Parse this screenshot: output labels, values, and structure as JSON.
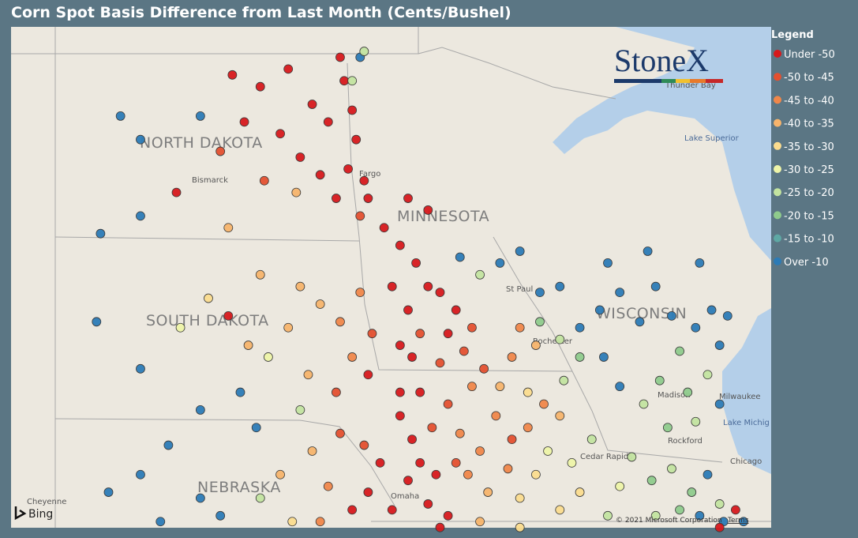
{
  "title": "Corn Spot Basis Difference from Last Month (Cents/Bushel)",
  "legend": {
    "title": "Legend",
    "items": [
      {
        "label": "Under -50",
        "color": "#d7191c"
      },
      {
        "label": "-50 to -45",
        "color": "#e4502f"
      },
      {
        "label": "-45 to -40",
        "color": "#f0874a"
      },
      {
        "label": "-40 to -35",
        "color": "#f7b46c"
      },
      {
        "label": "-35 to -30",
        "color": "#fbdc8e"
      },
      {
        "label": "-30 to -25",
        "color": "#eef4a8"
      },
      {
        "label": "-25 to -20",
        "color": "#c3e4a0"
      },
      {
        "label": "-20 to -15",
        "color": "#8fcb8c"
      },
      {
        "label": "-15 to -10",
        "color": "#5ea8a4"
      },
      {
        "label": "Over -10",
        "color": "#2c7bb6"
      }
    ]
  },
  "map": {
    "logo": "StoneX",
    "labels": {
      "nd": "NORTH DAKOTA",
      "mn": "MINNESOTA",
      "sd": "SOUTH DAKOTA",
      "wi": "WISCONSIN",
      "ne": "NEBRASKA",
      "bismarck": "Bismarck",
      "fargo": "Fargo",
      "superior": "Lake Superior",
      "thunder": "Thunder Bay",
      "madison": "Madison",
      "milwaukee": "Milwaukee",
      "michigan": "Lake Michig",
      "chicago": "Chicago",
      "rockford": "Rockford",
      "cedar": "Cedar Rapids",
      "rochester": "Rochester",
      "stpaul": "St Paul",
      "omaha": "Omaha",
      "cheyenne": "Cheyenne"
    },
    "bing": "Bing",
    "copyright": "© 2021 Microsoft Corporation",
    "terms": "Terms",
    "points": [
      {
        "lon": -100.2,
        "lat": 48.6,
        "c": 0
      },
      {
        "lon": -99.5,
        "lat": 48.4,
        "c": 0
      },
      {
        "lon": -98.8,
        "lat": 48.7,
        "c": 0
      },
      {
        "lon": -98.2,
        "lat": 48.1,
        "c": 0
      },
      {
        "lon": -99.9,
        "lat": 47.8,
        "c": 0
      },
      {
        "lon": -99.0,
        "lat": 47.6,
        "c": 0
      },
      {
        "lon": -98.5,
        "lat": 47.2,
        "c": 0
      },
      {
        "lon": -100.5,
        "lat": 47.3,
        "c": 1
      },
      {
        "lon": -97.4,
        "lat": 48.5,
        "c": 0
      },
      {
        "lon": -97.2,
        "lat": 48.0,
        "c": 0
      },
      {
        "lon": -97.1,
        "lat": 47.5,
        "c": 0
      },
      {
        "lon": -97.3,
        "lat": 47.0,
        "c": 0
      },
      {
        "lon": -96.9,
        "lat": 46.8,
        "c": 0
      },
      {
        "lon": -97.6,
        "lat": 46.5,
        "c": 0
      },
      {
        "lon": -98.0,
        "lat": 46.9,
        "c": 0
      },
      {
        "lon": -97.8,
        "lat": 47.8,
        "c": 0
      },
      {
        "lon": -97.0,
        "lat": 48.9,
        "c": 9
      },
      {
        "lon": -97.5,
        "lat": 48.9,
        "c": 0
      },
      {
        "lon": -96.8,
        "lat": 46.5,
        "c": 0
      },
      {
        "lon": -97.0,
        "lat": 46.2,
        "c": 1
      },
      {
        "lon": -98.6,
        "lat": 46.6,
        "c": 3
      },
      {
        "lon": -99.4,
        "lat": 46.8,
        "c": 1
      },
      {
        "lon": -101.6,
        "lat": 46.6,
        "c": 0
      },
      {
        "lon": -103.0,
        "lat": 47.9,
        "c": 9
      },
      {
        "lon": -102.5,
        "lat": 47.5,
        "c": 9
      },
      {
        "lon": -101.0,
        "lat": 47.9,
        "c": 9
      },
      {
        "lon": -103.5,
        "lat": 45.9,
        "c": 9
      },
      {
        "lon": -102.5,
        "lat": 46.2,
        "c": 9
      },
      {
        "lon": -100.3,
        "lat": 46.0,
        "c": 3
      },
      {
        "lon": -97.2,
        "lat": 48.5,
        "c": 6
      },
      {
        "lon": -96.9,
        "lat": 49.0,
        "c": 6
      },
      {
        "lon": -96.4,
        "lat": 46.0,
        "c": 0
      },
      {
        "lon": -96.0,
        "lat": 45.7,
        "c": 0
      },
      {
        "lon": -95.6,
        "lat": 45.4,
        "c": 0
      },
      {
        "lon": -95.3,
        "lat": 45.0,
        "c": 0
      },
      {
        "lon": -96.2,
        "lat": 45.0,
        "c": 0
      },
      {
        "lon": -95.8,
        "lat": 44.6,
        "c": 0
      },
      {
        "lon": -95.0,
        "lat": 44.9,
        "c": 0
      },
      {
        "lon": -94.6,
        "lat": 44.6,
        "c": 0
      },
      {
        "lon": -95.5,
        "lat": 44.2,
        "c": 1
      },
      {
        "lon": -96.0,
        "lat": 44.0,
        "c": 0
      },
      {
        "lon": -94.8,
        "lat": 44.2,
        "c": 0
      },
      {
        "lon": -94.2,
        "lat": 44.3,
        "c": 1
      },
      {
        "lon": -95.3,
        "lat": 46.3,
        "c": 0
      },
      {
        "lon": -95.8,
        "lat": 46.5,
        "c": 0
      },
      {
        "lon": -94.0,
        "lat": 45.2,
        "c": 6
      },
      {
        "lon": -93.5,
        "lat": 45.4,
        "c": 9
      },
      {
        "lon": -94.5,
        "lat": 45.5,
        "c": 9
      },
      {
        "lon": -93.0,
        "lat": 45.6,
        "c": 9
      },
      {
        "lon": -92.5,
        "lat": 44.9,
        "c": 9
      },
      {
        "lon": -92.0,
        "lat": 45.0,
        "c": 9
      },
      {
        "lon": -99.5,
        "lat": 45.2,
        "c": 3
      },
      {
        "lon": -98.5,
        "lat": 45.0,
        "c": 3
      },
      {
        "lon": -98.0,
        "lat": 44.7,
        "c": 3
      },
      {
        "lon": -97.5,
        "lat": 44.4,
        "c": 2
      },
      {
        "lon": -98.8,
        "lat": 44.3,
        "c": 3
      },
      {
        "lon": -97.2,
        "lat": 43.8,
        "c": 2
      },
      {
        "lon": -96.8,
        "lat": 43.5,
        "c": 0
      },
      {
        "lon": -97.6,
        "lat": 43.2,
        "c": 1
      },
      {
        "lon": -98.3,
        "lat": 43.5,
        "c": 3
      },
      {
        "lon": -99.3,
        "lat": 43.8,
        "c": 5
      },
      {
        "lon": -100.3,
        "lat": 44.5,
        "c": 0
      },
      {
        "lon": -99.8,
        "lat": 44.0,
        "c": 3
      },
      {
        "lon": -101.5,
        "lat": 44.3,
        "c": 5
      },
      {
        "lon": -100.8,
        "lat": 44.8,
        "c": 4
      },
      {
        "lon": -97.0,
        "lat": 44.9,
        "c": 2
      },
      {
        "lon": -96.7,
        "lat": 44.2,
        "c": 1
      },
      {
        "lon": -102.5,
        "lat": 43.6,
        "c": 9
      },
      {
        "lon": -103.6,
        "lat": 44.4,
        "c": 9
      },
      {
        "lon": -100.0,
        "lat": 43.2,
        "c": 9
      },
      {
        "lon": -101.0,
        "lat": 42.9,
        "c": 9
      },
      {
        "lon": -99.6,
        "lat": 42.6,
        "c": 9
      },
      {
        "lon": -98.5,
        "lat": 42.9,
        "c": 6
      },
      {
        "lon": -103.3,
        "lat": 41.5,
        "c": 9
      },
      {
        "lon": -102.5,
        "lat": 41.8,
        "c": 9
      },
      {
        "lon": -101.8,
        "lat": 42.3,
        "c": 9
      },
      {
        "lon": -101.0,
        "lat": 41.4,
        "c": 9
      },
      {
        "lon": -102.0,
        "lat": 41.0,
        "c": 9
      },
      {
        "lon": -100.5,
        "lat": 41.1,
        "c": 9
      },
      {
        "lon": -99.5,
        "lat": 41.4,
        "c": 6
      },
      {
        "lon": -99.0,
        "lat": 41.8,
        "c": 3
      },
      {
        "lon": -98.2,
        "lat": 42.2,
        "c": 3
      },
      {
        "lon": -97.8,
        "lat": 41.6,
        "c": 2
      },
      {
        "lon": -97.2,
        "lat": 41.2,
        "c": 0
      },
      {
        "lon": -96.8,
        "lat": 41.5,
        "c": 0
      },
      {
        "lon": -96.5,
        "lat": 42.0,
        "c": 0
      },
      {
        "lon": -97.5,
        "lat": 42.5,
        "c": 1
      },
      {
        "lon": -96.2,
        "lat": 41.2,
        "c": 0
      },
      {
        "lon": -96.9,
        "lat": 42.3,
        "c": 1
      },
      {
        "lon": -98.0,
        "lat": 41.0,
        "c": 2
      },
      {
        "lon": -98.7,
        "lat": 41.0,
        "c": 4
      },
      {
        "lon": -96.0,
        "lat": 42.8,
        "c": 0
      },
      {
        "lon": -95.7,
        "lat": 42.4,
        "c": 0
      },
      {
        "lon": -95.5,
        "lat": 42.0,
        "c": 0
      },
      {
        "lon": -95.8,
        "lat": 41.7,
        "c": 0
      },
      {
        "lon": -95.3,
        "lat": 41.3,
        "c": 0
      },
      {
        "lon": -95.1,
        "lat": 41.8,
        "c": 0
      },
      {
        "lon": -95.2,
        "lat": 42.6,
        "c": 1
      },
      {
        "lon": -96.0,
        "lat": 43.2,
        "c": 0
      },
      {
        "lon": -95.5,
        "lat": 43.2,
        "c": 0
      },
      {
        "lon": -94.8,
        "lat": 41.1,
        "c": 0
      },
      {
        "lon": -94.5,
        "lat": 42.5,
        "c": 2
      },
      {
        "lon": -94.0,
        "lat": 42.2,
        "c": 2
      },
      {
        "lon": -93.6,
        "lat": 42.8,
        "c": 2
      },
      {
        "lon": -93.2,
        "lat": 42.4,
        "c": 1
      },
      {
        "lon": -94.3,
        "lat": 41.8,
        "c": 2
      },
      {
        "lon": -93.8,
        "lat": 41.5,
        "c": 3
      },
      {
        "lon": -93.3,
        "lat": 41.9,
        "c": 2
      },
      {
        "lon": -92.8,
        "lat": 42.6,
        "c": 2
      },
      {
        "lon": -94.8,
        "lat": 43.0,
        "c": 1
      },
      {
        "lon": -94.2,
        "lat": 43.3,
        "c": 2
      },
      {
        "lon": -93.5,
        "lat": 43.3,
        "c": 3
      },
      {
        "lon": -92.8,
        "lat": 43.2,
        "c": 4
      },
      {
        "lon": -94.6,
        "lat": 42.0,
        "c": 1
      },
      {
        "lon": -93.0,
        "lat": 41.4,
        "c": 4
      },
      {
        "lon": -92.6,
        "lat": 41.8,
        "c": 4
      },
      {
        "lon": -92.3,
        "lat": 42.2,
        "c": 5
      },
      {
        "lon": -92.0,
        "lat": 42.8,
        "c": 3
      },
      {
        "lon": -91.7,
        "lat": 42.0,
        "c": 5
      },
      {
        "lon": -91.5,
        "lat": 41.5,
        "c": 4
      },
      {
        "lon": -91.2,
        "lat": 42.4,
        "c": 6
      },
      {
        "lon": -92.0,
        "lat": 41.2,
        "c": 4
      },
      {
        "lon": -94.0,
        "lat": 41.0,
        "c": 3
      },
      {
        "lon": -93.0,
        "lat": 40.9,
        "c": 4
      },
      {
        "lon": -95.0,
        "lat": 40.9,
        "c": 0
      },
      {
        "lon": -92.4,
        "lat": 43.0,
        "c": 2
      },
      {
        "lon": -91.9,
        "lat": 43.4,
        "c": 6
      },
      {
        "lon": -93.9,
        "lat": 43.6,
        "c": 1
      },
      {
        "lon": -93.2,
        "lat": 43.8,
        "c": 2
      },
      {
        "lon": -92.6,
        "lat": 44.0,
        "c": 3
      },
      {
        "lon": -94.4,
        "lat": 43.9,
        "c": 1
      },
      {
        "lon": -95.0,
        "lat": 43.7,
        "c": 1
      },
      {
        "lon": -95.7,
        "lat": 43.8,
        "c": 0
      },
      {
        "lon": -92.5,
        "lat": 44.4,
        "c": 7
      },
      {
        "lon": -92.0,
        "lat": 44.1,
        "c": 6
      },
      {
        "lon": -91.5,
        "lat": 43.8,
        "c": 7
      },
      {
        "lon": -93.0,
        "lat": 44.3,
        "c": 2
      },
      {
        "lon": -91.0,
        "lat": 44.6,
        "c": 9
      },
      {
        "lon": -90.5,
        "lat": 44.9,
        "c": 9
      },
      {
        "lon": -90.0,
        "lat": 44.4,
        "c": 9
      },
      {
        "lon": -89.6,
        "lat": 45.0,
        "c": 9
      },
      {
        "lon": -89.2,
        "lat": 44.5,
        "c": 9
      },
      {
        "lon": -88.6,
        "lat": 44.3,
        "c": 9
      },
      {
        "lon": -88.2,
        "lat": 44.6,
        "c": 9
      },
      {
        "lon": -87.8,
        "lat": 44.5,
        "c": 9
      },
      {
        "lon": -89.0,
        "lat": 43.9,
        "c": 7
      },
      {
        "lon": -89.5,
        "lat": 43.4,
        "c": 7
      },
      {
        "lon": -89.9,
        "lat": 43.0,
        "c": 6
      },
      {
        "lon": -88.8,
        "lat": 43.2,
        "c": 7
      },
      {
        "lon": -88.3,
        "lat": 43.5,
        "c": 6
      },
      {
        "lon": -88.0,
        "lat": 43.0,
        "c": 9
      },
      {
        "lon": -88.6,
        "lat": 42.7,
        "c": 6
      },
      {
        "lon": -89.3,
        "lat": 42.6,
        "c": 7
      },
      {
        "lon": -90.5,
        "lat": 43.3,
        "c": 9
      },
      {
        "lon": -90.9,
        "lat": 43.8,
        "c": 9
      },
      {
        "lon": -91.5,
        "lat": 44.3,
        "c": 9
      },
      {
        "lon": -88.0,
        "lat": 44.0,
        "c": 9
      },
      {
        "lon": -89.8,
        "lat": 45.6,
        "c": 9
      },
      {
        "lon": -90.8,
        "lat": 45.4,
        "c": 9
      },
      {
        "lon": -88.5,
        "lat": 45.4,
        "c": 9
      },
      {
        "lon": -90.2,
        "lat": 42.1,
        "c": 6
      },
      {
        "lon": -89.7,
        "lat": 41.7,
        "c": 7
      },
      {
        "lon": -89.2,
        "lat": 41.9,
        "c": 6
      },
      {
        "lon": -88.7,
        "lat": 41.5,
        "c": 7
      },
      {
        "lon": -88.3,
        "lat": 41.8,
        "c": 9
      },
      {
        "lon": -88.0,
        "lat": 41.3,
        "c": 6
      },
      {
        "lon": -89.0,
        "lat": 41.2,
        "c": 7
      },
      {
        "lon": -90.5,
        "lat": 41.6,
        "c": 5
      },
      {
        "lon": -90.8,
        "lat": 41.1,
        "c": 6
      },
      {
        "lon": -87.9,
        "lat": 41.0,
        "c": 9
      },
      {
        "lon": -88.5,
        "lat": 41.1,
        "c": 9
      },
      {
        "lon": -89.6,
        "lat": 41.1,
        "c": 6
      },
      {
        "lon": -87.6,
        "lat": 41.2,
        "c": 0
      },
      {
        "lon": -88.0,
        "lat": 40.9,
        "c": 0
      },
      {
        "lon": -87.4,
        "lat": 41.0,
        "c": 9
      }
    ]
  }
}
